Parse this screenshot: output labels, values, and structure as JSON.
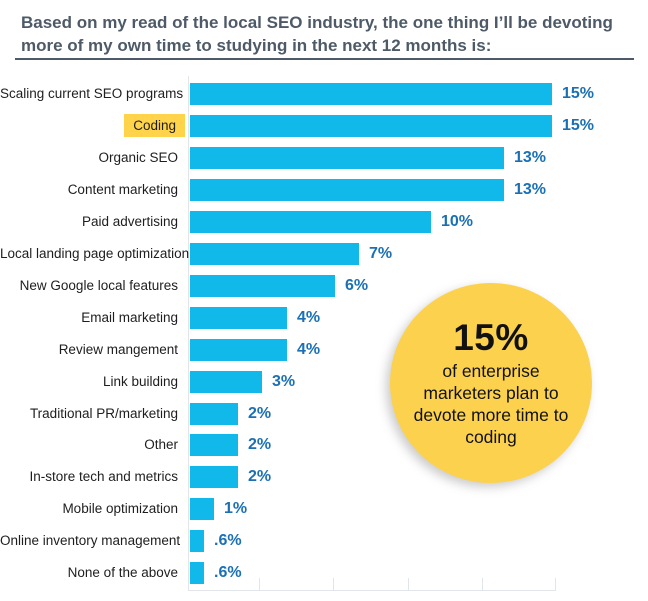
{
  "title": "Based on my read of the local SEO industry, the one thing I’ll be devoting more of my own time to studying in the next 12 months is:",
  "colors": {
    "bar": "#10b9ea",
    "value_label": "#1b70b4",
    "category_highlight": "#ffd34a",
    "callout_bg": "#fcd14e",
    "title_text": "#4e5a68"
  },
  "chart_data": {
    "type": "bar",
    "orientation": "horizontal",
    "categories": [
      "Scaling current SEO programs",
      "Coding",
      "Organic SEO",
      "Content marketing",
      "Paid advertising",
      "Local landing page optimization",
      "New Google local features",
      "Email marketing",
      "Review mangement",
      "Link building",
      "Traditional PR/marketing",
      "Other",
      "In-store tech and metrics",
      "Mobile optimization",
      "Online inventory management",
      "None of the above"
    ],
    "values": [
      15,
      15,
      13,
      13,
      10,
      7,
      6,
      4,
      4,
      3,
      2,
      2,
      2,
      1,
      0.6,
      0.6
    ],
    "value_labels": [
      "15%",
      "15%",
      "13%",
      "13%",
      "10%",
      "7%",
      "6%",
      "4%",
      "4%",
      "3%",
      "2%",
      "2%",
      "2%",
      "1%",
      ".6%",
      ".6%"
    ],
    "highlighted_category": "Coding",
    "xlim": [
      0,
      15.5
    ],
    "xlabel": "",
    "ylabel": "",
    "grid": "bottom axis ticks only, unlabeled",
    "legend": "none"
  },
  "callout": {
    "headline": "15%",
    "text": "of enterprise marketers plan to devote more time to coding"
  }
}
